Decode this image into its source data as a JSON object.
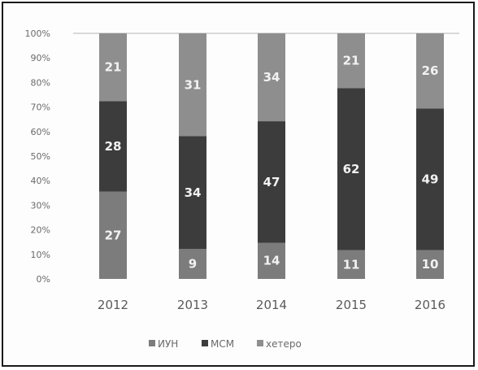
{
  "chart_data": {
    "type": "bar",
    "stacked": true,
    "percent_stacked": true,
    "categories": [
      "2012",
      "2013",
      "2014",
      "2015",
      "2016"
    ],
    "series": [
      {
        "name": "ИУН",
        "values": [
          27,
          9,
          14,
          11,
          10
        ],
        "color": "#7c7c7c"
      },
      {
        "name": "МСМ",
        "values": [
          28,
          34,
          47,
          62,
          49
        ],
        "color": "#3c3c3c"
      },
      {
        "name": "хетеро",
        "values": [
          21,
          31,
          34,
          21,
          26
        ],
        "color": "#8e8e8e"
      }
    ],
    "yticks": [
      "0%",
      "10%",
      "20%",
      "30%",
      "40%",
      "50%",
      "60%",
      "70%",
      "80%",
      "90%",
      "100%"
    ],
    "ylim": [
      0,
      100
    ],
    "title": "",
    "xlabel": "",
    "ylabel": "",
    "grid": false,
    "legend": "bottom"
  }
}
